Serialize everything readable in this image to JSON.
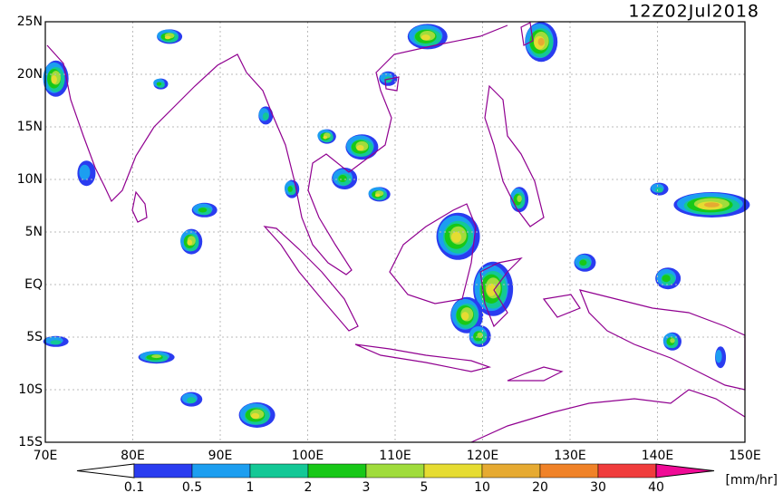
{
  "header": {
    "title": "12Z02Jul2018"
  },
  "map": {
    "lon_labels": [
      "70E",
      "80E",
      "90E",
      "100E",
      "110E",
      "120E",
      "130E",
      "140E",
      "150E"
    ],
    "lat_labels": [
      "25N",
      "20N",
      "15N",
      "10N",
      "5N",
      "EQ",
      "5S",
      "10S",
      "15S"
    ]
  },
  "colorbar": {
    "levels": [
      "0.1",
      "0.5",
      "1",
      "2",
      "3",
      "5",
      "10",
      "20",
      "30",
      "40"
    ],
    "colors": [
      "#ffffff",
      "#2a3cf0",
      "#1c9ef0",
      "#14c896",
      "#18c818",
      "#a0dc3c",
      "#e6dc32",
      "#e6aa32",
      "#f08228",
      "#f03c3c",
      "#f00a96"
    ],
    "unit": "[mm/hr]"
  }
}
